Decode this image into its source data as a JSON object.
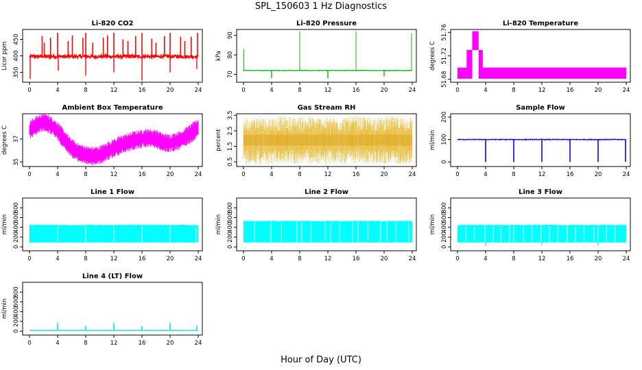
{
  "page": {
    "title": "SPL_150603  1 Hz Diagnostics",
    "xlabel": "Hour of Day (UTC)"
  },
  "chart_data": [
    {
      "type": "line",
      "title": "Li-820 CO2",
      "ylabel": "Licor ppm",
      "color": "#ff0000",
      "xlim": [
        0,
        24
      ],
      "ylim": [
        320,
        480
      ],
      "xticks": [
        0,
        4,
        8,
        12,
        16,
        20,
        24
      ],
      "yticks": [
        350,
        400,
        450
      ],
      "pattern": "co2",
      "baseline": 398,
      "noise": 6,
      "spikes_up": [
        [
          1.8,
          460
        ],
        [
          2.1,
          440
        ],
        [
          3.0,
          455
        ],
        [
          4.0,
          470
        ],
        [
          5.5,
          445
        ],
        [
          6.1,
          462
        ],
        [
          7.6,
          455
        ],
        [
          8.0,
          470
        ],
        [
          9.0,
          440
        ],
        [
          10.5,
          455
        ],
        [
          11.1,
          462
        ],
        [
          12.0,
          470
        ],
        [
          13.3,
          450
        ],
        [
          14.0,
          445
        ],
        [
          15.1,
          460
        ],
        [
          16.0,
          470
        ],
        [
          17.4,
          452
        ],
        [
          18.0,
          440
        ],
        [
          19.2,
          460
        ],
        [
          20.0,
          470
        ],
        [
          21.5,
          458
        ],
        [
          22.1,
          445
        ],
        [
          23.0,
          458
        ],
        [
          23.9,
          470
        ]
      ],
      "spikes_down": [
        [
          0.1,
          330
        ],
        [
          4.1,
          355
        ],
        [
          8.0,
          340
        ],
        [
          12.0,
          350
        ],
        [
          16.0,
          325
        ],
        [
          20.0,
          350
        ],
        [
          23.8,
          360
        ]
      ]
    },
    {
      "type": "line",
      "title": "Li-820 Pressure",
      "ylabel": "kPa",
      "color": "#00bb00",
      "xlim": [
        0,
        24
      ],
      "ylim": [
        66,
        93
      ],
      "xticks": [
        0,
        4,
        8,
        12,
        16,
        20,
        24
      ],
      "yticks": [
        70,
        80,
        90
      ],
      "pattern": "pressure",
      "baseline": 72,
      "noise": 0.15,
      "spikes_up": [
        [
          0.05,
          83
        ],
        [
          8.0,
          92
        ],
        [
          16.0,
          92
        ],
        [
          23.9,
          91
        ]
      ],
      "spikes_down": [
        [
          4.0,
          68
        ],
        [
          12.0,
          68
        ],
        [
          20.0,
          69
        ]
      ]
    },
    {
      "type": "step",
      "title": "Li-820 Temperature",
      "ylabel": "degrees C",
      "color": "#ff00ff",
      "xlim": [
        0,
        24
      ],
      "ylim": [
        51.675,
        51.765
      ],
      "xticks": [
        0,
        4,
        8,
        12,
        16,
        20,
        24
      ],
      "yticks": [
        51.68,
        51.72,
        51.76
      ],
      "ytick_labels": [
        "51.68",
        "51.72",
        "51.76"
      ],
      "pattern": "bands",
      "bands": [
        [
          0,
          1.3,
          51.681,
          51.7
        ],
        [
          1.3,
          2.1,
          51.681,
          51.73
        ],
        [
          2.1,
          3.0,
          51.73,
          51.762
        ],
        [
          3.0,
          3.6,
          51.681,
          51.73
        ],
        [
          3.6,
          24,
          51.681,
          51.7
        ]
      ]
    },
    {
      "type": "line",
      "title": "Ambient Box Temperature",
      "ylabel": "degrees C",
      "color": "#ff00ff",
      "xlim": [
        0,
        24
      ],
      "ylim": [
        34.6,
        39.2
      ],
      "xticks": [
        0,
        4,
        8,
        12,
        16,
        20,
        24
      ],
      "yticks": [
        35,
        37
      ],
      "pattern": "ambient",
      "curve": [
        [
          0,
          37.8
        ],
        [
          1,
          38.2
        ],
        [
          2,
          38.5
        ],
        [
          3,
          38.2
        ],
        [
          4,
          37.7
        ],
        [
          5,
          36.9
        ],
        [
          6,
          36.2
        ],
        [
          7,
          35.8
        ],
        [
          8,
          35.6
        ],
        [
          9,
          35.5
        ],
        [
          10,
          35.6
        ],
        [
          11,
          35.9
        ],
        [
          12,
          36.2
        ],
        [
          13,
          36.5
        ],
        [
          14,
          36.7
        ],
        [
          15,
          36.9
        ],
        [
          16,
          37.0
        ],
        [
          17,
          37.1
        ],
        [
          18,
          37.0
        ],
        [
          19,
          36.7
        ],
        [
          20,
          36.6
        ],
        [
          21,
          36.8
        ],
        [
          22,
          37.1
        ],
        [
          23,
          37.5
        ],
        [
          24,
          38.0
        ]
      ],
      "noise": 0.75
    },
    {
      "type": "scatter",
      "title": "Gas Stream RH",
      "ylabel": "percent",
      "color": "#e6a800",
      "xlim": [
        0,
        24
      ],
      "ylim": [
        0.2,
        3.6
      ],
      "xticks": [
        0,
        4,
        8,
        12,
        16,
        20,
        24
      ],
      "yticks": [
        0.5,
        1.5,
        2.5,
        3.5
      ],
      "pattern": "rh",
      "center": 1.9,
      "spread": 1.6
    },
    {
      "type": "line",
      "title": "Sample Flow",
      "ylabel": "ml/min",
      "color": "#0000ff",
      "xlim": [
        0,
        24
      ],
      "ylim": [
        -20,
        215
      ],
      "xticks": [
        0,
        4,
        8,
        12,
        16,
        20,
        24
      ],
      "yticks": [
        0,
        100,
        200
      ],
      "pattern": "flow",
      "baseline": 100,
      "noise": 2,
      "dips": [
        [
          4.0,
          0
        ],
        [
          8.0,
          0
        ],
        [
          12.0,
          0
        ],
        [
          16.0,
          0
        ],
        [
          20.0,
          0
        ],
        [
          23.9,
          0
        ]
      ]
    },
    {
      "type": "line",
      "title": "Line 1 Flow",
      "ylabel": "ml/min",
      "color": "#00ffff",
      "xlim": [
        0,
        24
      ],
      "ylim": [
        -80,
        1000
      ],
      "xticks": [
        0,
        4,
        8,
        12,
        16,
        20,
        24
      ],
      "yticks": [
        0,
        200,
        400,
        600,
        800
      ],
      "pattern": "band",
      "band": [
        90,
        440
      ],
      "gaps": [
        4.0,
        8.0,
        12.0,
        16.0,
        20.0,
        23.7
      ]
    },
    {
      "type": "line",
      "title": "Line 2 Flow",
      "ylabel": "ml/min",
      "color": "#00ffff",
      "xlim": [
        0,
        24
      ],
      "ylim": [
        -80,
        1000
      ],
      "xticks": [
        0,
        4,
        8,
        12,
        16,
        20,
        24
      ],
      "yticks": [
        0,
        200,
        400,
        600,
        800
      ],
      "pattern": "band",
      "band": [
        90,
        520
      ],
      "gaps": [
        1.6,
        3.9,
        5.4,
        7.6,
        8.3,
        9.6,
        11.6,
        12.4,
        13.7,
        15.5,
        16.3,
        17.7,
        19.5,
        20.4,
        21.7,
        23.5
      ]
    },
    {
      "type": "line",
      "title": "Line 3 Flow",
      "ylabel": "ml/min",
      "color": "#00ffff",
      "xlim": [
        0,
        24
      ],
      "ylim": [
        -80,
        1000
      ],
      "xticks": [
        0,
        4,
        8,
        12,
        16,
        20,
        24
      ],
      "yticks": [
        0,
        200,
        400,
        600,
        800
      ],
      "pattern": "band",
      "band": [
        90,
        440
      ],
      "gaps": [
        1.2,
        2.4,
        3.9,
        5.1,
        6.2,
        7.4,
        8.0,
        9.4,
        10.6,
        11.9,
        13.1,
        14.3,
        15.6,
        16.8,
        18.0,
        19.4,
        20.0,
        21.2,
        22.4
      ],
      "dips": [
        [
          4.0,
          20
        ],
        [
          12.0,
          40
        ],
        [
          20.0,
          30
        ]
      ]
    },
    {
      "type": "line",
      "title": "Line 4 (LT) Flow",
      "ylabel": "ml/min",
      "color": "#00e5e5",
      "xlim": [
        0,
        24
      ],
      "ylim": [
        -80,
        1000
      ],
      "xticks": [
        0,
        4,
        8,
        12,
        16,
        20,
        24
      ],
      "yticks": [
        0,
        200,
        400,
        600,
        800
      ],
      "pattern": "flat",
      "baseline": 15,
      "spikes_up": [
        [
          4.0,
          170
        ],
        [
          8.0,
          110
        ],
        [
          12.0,
          170
        ],
        [
          16.0,
          100
        ],
        [
          20.0,
          170
        ],
        [
          23.8,
          120
        ]
      ]
    }
  ]
}
